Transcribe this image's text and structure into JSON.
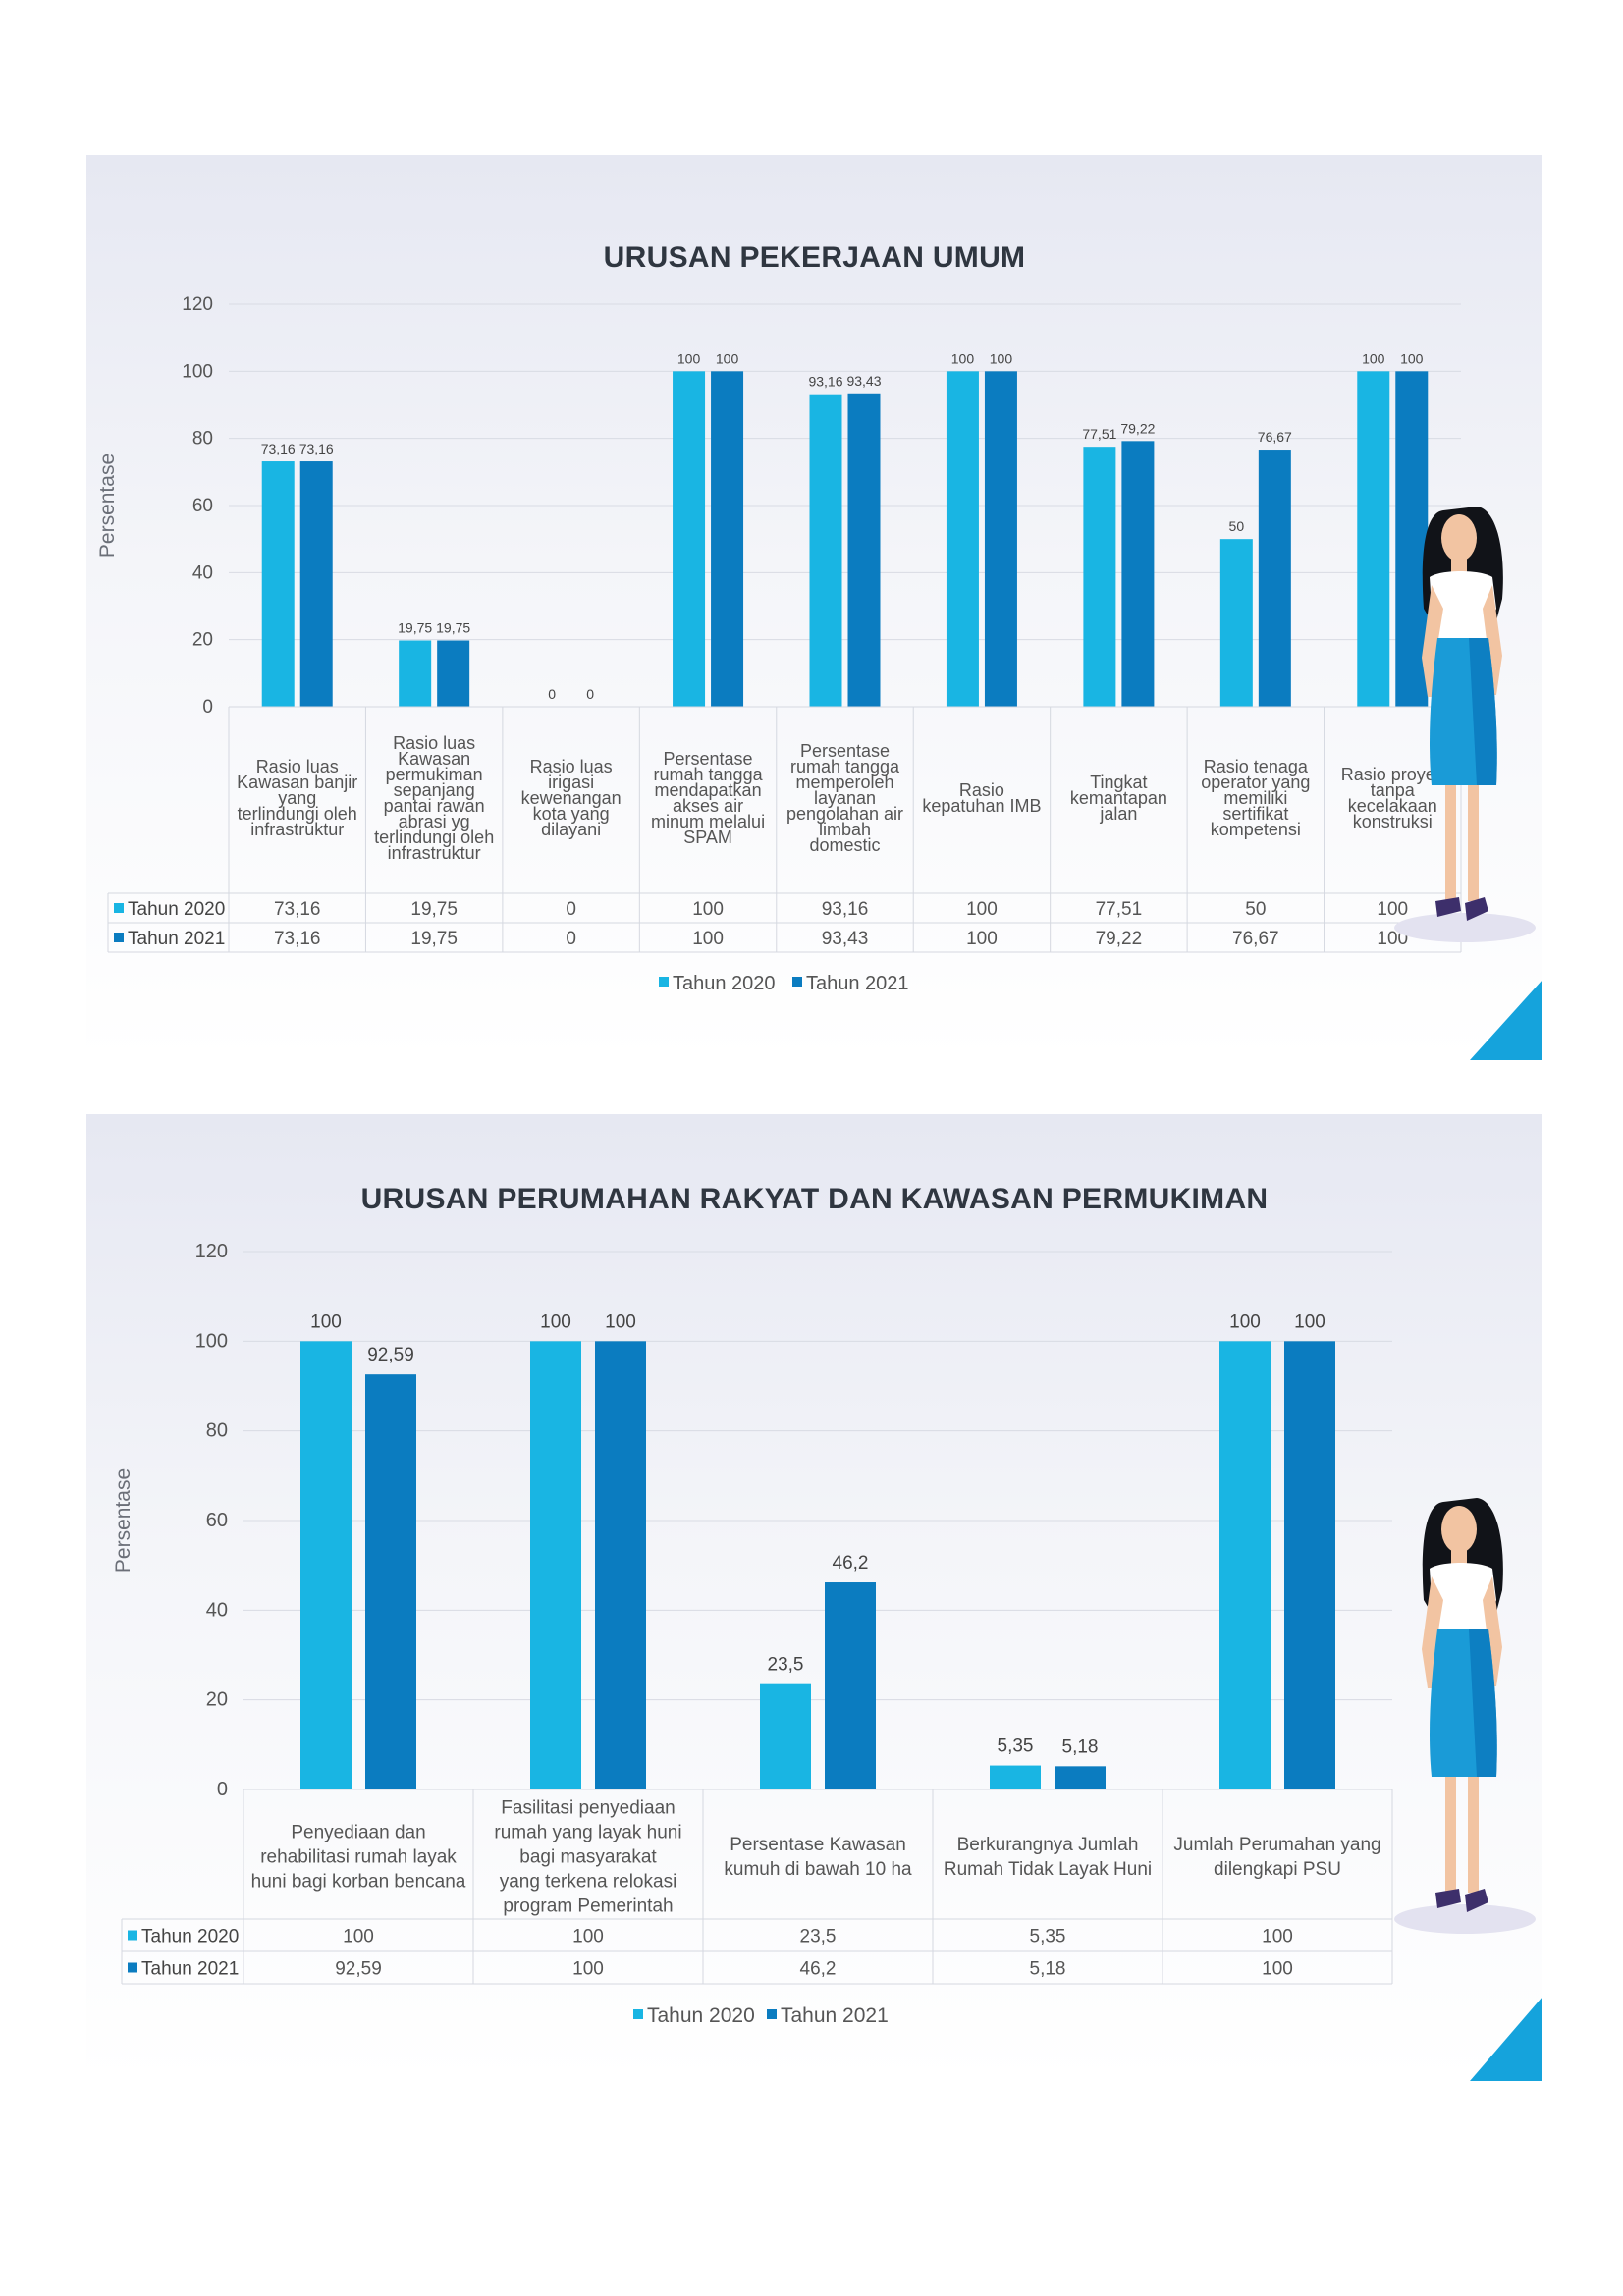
{
  "charts": [
    {
      "title": "URUSAN PEKERJAAN UMUM",
      "ylabel": "Persentase",
      "ylim": [
        0,
        120
      ],
      "yticks": [
        0,
        20,
        40,
        60,
        80,
        100,
        120
      ],
      "series": [
        {
          "name": "Tahun 2020",
          "color": "#19b5e3",
          "values": [
            73.16,
            19.75,
            0,
            100,
            93.16,
            100,
            77.51,
            50,
            100
          ]
        },
        {
          "name": "Tahun 2021",
          "color": "#0b7cc0",
          "values": [
            73.16,
            19.75,
            0,
            100,
            93.43,
            100,
            79.22,
            76.67,
            100
          ]
        }
      ],
      "labels": [
        [
          "73,16",
          "19,75",
          "0",
          "100",
          "93,16",
          "100",
          "77,51",
          "50",
          "100"
        ],
        [
          "73,16",
          "19,75",
          "0",
          "100",
          "93,43",
          "100",
          "79,22",
          "76,67",
          "100"
        ]
      ],
      "categories": [
        [
          "Rasio luas",
          "Kawasan banjir",
          "yang",
          "terlindungi oleh",
          "infrastruktur"
        ],
        [
          "Rasio luas",
          "Kawasan",
          "permukiman",
          "sepanjang",
          "pantai rawan",
          "abrasi yg",
          "terlindungi oleh",
          "infrastruktur"
        ],
        [
          "Rasio luas",
          "irigasi",
          "kewenangan",
          "kota yang",
          "dilayani"
        ],
        [
          "Persentase",
          "rumah tangga",
          "mendapatkan",
          "akses air",
          "minum melalui",
          "SPAM"
        ],
        [
          "Persentase",
          "rumah tangga",
          "memperoleh",
          "layanan",
          "pengolahan air",
          "limbah",
          "domestic"
        ],
        [
          "Rasio",
          "kepatuhan IMB"
        ],
        [
          "Tingkat",
          "kemantapan",
          "jalan"
        ],
        [
          "Rasio tenaga",
          "operator yang",
          "memiliki",
          "sertifikat",
          "kompetensi"
        ],
        [
          "Rasio proyek",
          "tanpa",
          "kecelakaan",
          "konstruksi"
        ]
      ]
    },
    {
      "title": "URUSAN PERUMAHAN RAKYAT DAN KAWASAN PERMUKIMAN",
      "ylabel": "Persentase",
      "ylim": [
        0,
        120
      ],
      "yticks": [
        0,
        20,
        40,
        60,
        80,
        100,
        120
      ],
      "series": [
        {
          "name": "Tahun 2020",
          "color": "#19b5e3",
          "values": [
            100,
            100,
            23.5,
            5.35,
            100
          ]
        },
        {
          "name": "Tahun 2021",
          "color": "#0b7cc0",
          "values": [
            92.59,
            100,
            46.2,
            5.18,
            100
          ]
        }
      ],
      "labels": [
        [
          "100",
          "100",
          "23,5",
          "5,35",
          "100"
        ],
        [
          "92,59",
          "100",
          "46,2",
          "5,18",
          "100"
        ]
      ],
      "categories": [
        [
          "Penyediaan dan",
          "rehabilitasi rumah layak",
          "huni bagi korban bencana"
        ],
        [
          "Fasilitasi penyediaan",
          "rumah yang layak huni",
          "bagi        masyarakat",
          "yang terkena relokasi",
          "program Pemerintah"
        ],
        [
          "Persentase Kawasan",
          "kumuh di bawah 10 ha"
        ],
        [
          "Berkurangnya Jumlah",
          "Rumah Tidak Layak Huni"
        ],
        [
          "Jumlah Perumahan yang",
          "dilengkapi PSU"
        ]
      ]
    }
  ],
  "chart_data": [
    {
      "type": "bar",
      "title": "URUSAN PEKERJAAN UMUM",
      "ylabel": "Persentase",
      "ylim": [
        0,
        120
      ],
      "categories": [
        "Rasio luas Kawasan banjir yang terlindungi oleh infrastruktur",
        "Rasio luas Kawasan permukiman sepanjang pantai rawan abrasi yg terlindungi oleh infrastruktur",
        "Rasio luas irigasi kewenangan kota yang dilayani",
        "Persentase rumah tangga mendapatkan akses air minum melalui SPAM",
        "Persentase rumah tangga memperoleh layanan pengolahan air limbah domestic",
        "Rasio kepatuhan IMB",
        "Tingkat kemantapan jalan",
        "Rasio tenaga operator yang memiliki sertifikat kompetensi",
        "Rasio proyek tanpa kecelakaan konstruksi"
      ],
      "series": [
        {
          "name": "Tahun 2020",
          "values": [
            73.16,
            19.75,
            0,
            100,
            93.16,
            100,
            77.51,
            50,
            100
          ]
        },
        {
          "name": "Tahun 2021",
          "values": [
            73.16,
            19.75,
            0,
            100,
            93.43,
            100,
            79.22,
            76.67,
            100
          ]
        }
      ],
      "legend": "bottom",
      "grid": true
    },
    {
      "type": "bar",
      "title": "URUSAN PERUMAHAN RAKYAT DAN KAWASAN PERMUKIMAN",
      "ylabel": "Persentase",
      "ylim": [
        0,
        120
      ],
      "categories": [
        "Penyediaan dan rehabilitasi rumah layak huni bagi korban bencana",
        "Fasilitasi penyediaan rumah yang layak huni bagi masyarakat yang terkena relokasi program Pemerintah",
        "Persentase Kawasan kumuh di bawah 10 ha",
        "Berkurangnya Jumlah Rumah Tidak Layak Huni",
        "Jumlah Perumahan yang dilengkapi PSU"
      ],
      "series": [
        {
          "name": "Tahun 2020",
          "values": [
            100,
            100,
            23.5,
            5.35,
            100
          ]
        },
        {
          "name": "Tahun 2021",
          "values": [
            92.59,
            100,
            46.2,
            5.18,
            100
          ]
        }
      ],
      "legend": "bottom",
      "grid": true
    }
  ]
}
